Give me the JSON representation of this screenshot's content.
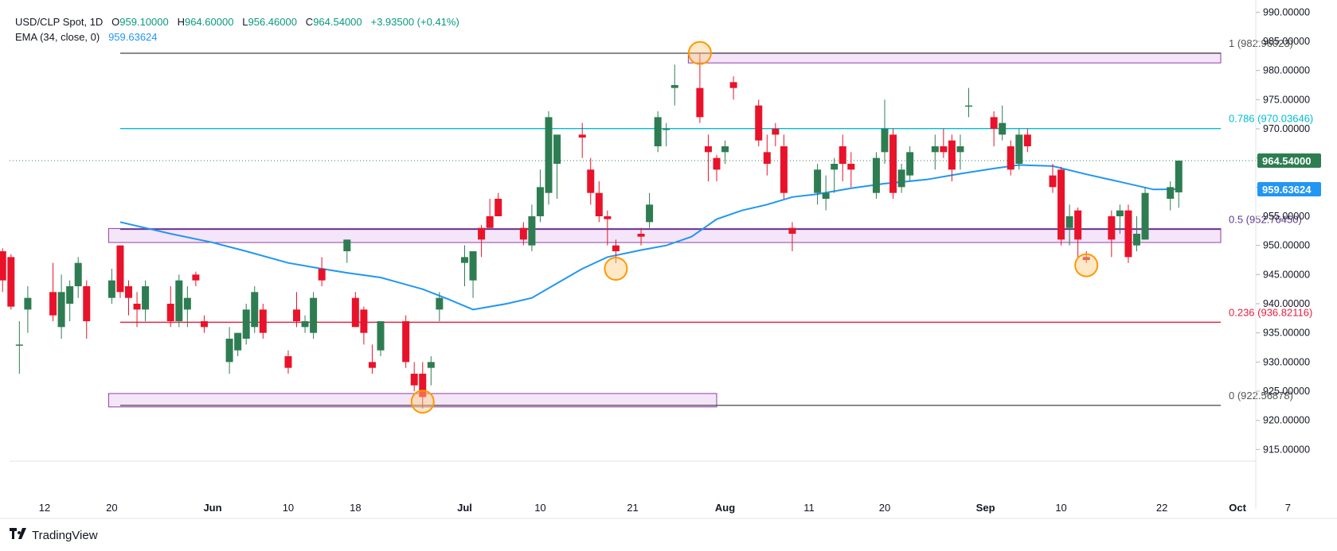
{
  "legend": {
    "symbol": "USD/CLP Spot, 1D",
    "o_label": "O",
    "o": "959.10000",
    "h_label": "H",
    "h": "964.60000",
    "l_label": "L",
    "l": "956.46000",
    "c_label": "C",
    "c": "964.54000",
    "change": "+3.93500 (+0.41%)",
    "ema_label": "EMA (34, close, 0)",
    "ema_value": "959.63624"
  },
  "brand": {
    "name": "TradingView"
  },
  "colors": {
    "up": "#2e7d52",
    "down": "#e8132a",
    "ema": "#2196f3",
    "zone_fill": "#f3e0f7",
    "zone_stroke": "#8e3fa6"
  },
  "chart_data": {
    "type": "candlestick",
    "ylim": [
      913,
      991
    ],
    "y_ticks": [
      "990.00000",
      "985.00000",
      "980.00000",
      "975.00000",
      "970.00000",
      "965.00000",
      "960.00000",
      "955.00000",
      "950.00000",
      "945.00000",
      "940.00000",
      "935.00000",
      "930.00000",
      "925.00000",
      "920.00000",
      "915.00000"
    ],
    "x_labels": [
      {
        "label": "12",
        "day": "2024-05-12"
      },
      {
        "label": "20",
        "day": "2024-05-20"
      },
      {
        "label": "Jun",
        "day": "2024-06-01"
      },
      {
        "label": "10",
        "day": "2024-06-10"
      },
      {
        "label": "18",
        "day": "2024-06-18"
      },
      {
        "label": "Jul",
        "day": "2024-07-01"
      },
      {
        "label": "10",
        "day": "2024-07-10"
      },
      {
        "label": "21",
        "day": "2024-07-21"
      },
      {
        "label": "Aug",
        "day": "2024-08-01"
      },
      {
        "label": "11",
        "day": "2024-08-11"
      },
      {
        "label": "20",
        "day": "2024-08-20"
      },
      {
        "label": "Sep",
        "day": "2024-09-01"
      },
      {
        "label": "10",
        "day": "2024-09-10"
      },
      {
        "label": "22",
        "day": "2024-09-22"
      },
      {
        "label": "Oct",
        "day": "2024-10-01"
      },
      {
        "label": "7",
        "day": "2024-10-07"
      }
    ],
    "candles": [
      {
        "d": "2024-05-07",
        "o": 949,
        "h": 949.5,
        "l": 942,
        "c": 944
      },
      {
        "d": "2024-05-08",
        "o": 948,
        "h": 948.5,
        "l": 939,
        "c": 939.5
      },
      {
        "d": "2024-05-09",
        "o": 933,
        "h": 937,
        "l": 928,
        "c": 933
      },
      {
        "d": "2024-05-10",
        "o": 939,
        "h": 943,
        "l": 935,
        "c": 941
      },
      {
        "d": "2024-05-13",
        "o": 942,
        "h": 947,
        "l": 937,
        "c": 938
      },
      {
        "d": "2024-05-14",
        "o": 936,
        "h": 945,
        "l": 934,
        "c": 942
      },
      {
        "d": "2024-05-15",
        "o": 940,
        "h": 944,
        "l": 937,
        "c": 943
      },
      {
        "d": "2024-05-16",
        "o": 943,
        "h": 948,
        "l": 941,
        "c": 947
      },
      {
        "d": "2024-05-17",
        "o": 943,
        "h": 944,
        "l": 934,
        "c": 937
      },
      {
        "d": "2024-05-20",
        "o": 941,
        "h": 946,
        "l": 940,
        "c": 944
      },
      {
        "d": "2024-05-21",
        "o": 950,
        "h": 950,
        "l": 941,
        "c": 942
      },
      {
        "d": "2024-05-22",
        "o": 943,
        "h": 944,
        "l": 938,
        "c": 941
      },
      {
        "d": "2024-05-23",
        "o": 940,
        "h": 942,
        "l": 936,
        "c": 939
      },
      {
        "d": "2024-05-24",
        "o": 939,
        "h": 944,
        "l": 937,
        "c": 943
      },
      {
        "d": "2024-05-27",
        "o": 940,
        "h": 943,
        "l": 936,
        "c": 937
      },
      {
        "d": "2024-05-28",
        "o": 937,
        "h": 945,
        "l": 936,
        "c": 944
      },
      {
        "d": "2024-05-29",
        "o": 939,
        "h": 943,
        "l": 936,
        "c": 941
      },
      {
        "d": "2024-05-30",
        "o": 945,
        "h": 945.5,
        "l": 943,
        "c": 944
      },
      {
        "d": "2024-05-31",
        "o": 937,
        "h": 938,
        "l": 935,
        "c": 936
      },
      {
        "d": "2024-06-03",
        "o": 930,
        "h": 936,
        "l": 928,
        "c": 934
      },
      {
        "d": "2024-06-04",
        "o": 932,
        "h": 935,
        "l": 931,
        "c": 935
      },
      {
        "d": "2024-06-05",
        "o": 934,
        "h": 940,
        "l": 933,
        "c": 939
      },
      {
        "d": "2024-06-06",
        "o": 936,
        "h": 943,
        "l": 935,
        "c": 942
      },
      {
        "d": "2024-06-07",
        "o": 939,
        "h": 940,
        "l": 934,
        "c": 935
      },
      {
        "d": "2024-06-10",
        "o": 931,
        "h": 932,
        "l": 928,
        "c": 929
      },
      {
        "d": "2024-06-11",
        "o": 939,
        "h": 942,
        "l": 936,
        "c": 937
      },
      {
        "d": "2024-06-12",
        "o": 936,
        "h": 938,
        "l": 935,
        "c": 937
      },
      {
        "d": "2024-06-13",
        "o": 935,
        "h": 942,
        "l": 934,
        "c": 941
      },
      {
        "d": "2024-06-14",
        "o": 946,
        "h": 948,
        "l": 943,
        "c": 944
      },
      {
        "d": "2024-06-17",
        "o": 949,
        "h": 951,
        "l": 947,
        "c": 951
      },
      {
        "d": "2024-06-18",
        "o": 941,
        "h": 942,
        "l": 936,
        "c": 936
      },
      {
        "d": "2024-06-19",
        "o": 939,
        "h": 939.5,
        "l": 933,
        "c": 935
      },
      {
        "d": "2024-06-20",
        "o": 930,
        "h": 933,
        "l": 928,
        "c": 929
      },
      {
        "d": "2024-06-21",
        "o": 932,
        "h": 937,
        "l": 931,
        "c": 937
      },
      {
        "d": "2024-06-24",
        "o": 937,
        "h": 938,
        "l": 929,
        "c": 930
      },
      {
        "d": "2024-06-25",
        "o": 928,
        "h": 930,
        "l": 925,
        "c": 926
      },
      {
        "d": "2024-06-26",
        "o": 928,
        "h": 930,
        "l": 922,
        "c": 924
      },
      {
        "d": "2024-06-27",
        "o": 929,
        "h": 931,
        "l": 926,
        "c": 930
      },
      {
        "d": "2024-06-28",
        "o": 939,
        "h": 942,
        "l": 937,
        "c": 941
      },
      {
        "d": "2024-07-01",
        "o": 947,
        "h": 950,
        "l": 943,
        "c": 948
      },
      {
        "d": "2024-07-02",
        "o": 944,
        "h": 949,
        "l": 941,
        "c": 949
      },
      {
        "d": "2024-07-03",
        "o": 953,
        "h": 953.5,
        "l": 948,
        "c": 951
      },
      {
        "d": "2024-07-04",
        "o": 955,
        "h": 958,
        "l": 953,
        "c": 953
      },
      {
        "d": "2024-07-05",
        "o": 958,
        "h": 959,
        "l": 955,
        "c": 955
      },
      {
        "d": "2024-07-08",
        "o": 953,
        "h": 954,
        "l": 950,
        "c": 951
      },
      {
        "d": "2024-07-09",
        "o": 950,
        "h": 957,
        "l": 949,
        "c": 955
      },
      {
        "d": "2024-07-10",
        "o": 955,
        "h": 963,
        "l": 954,
        "c": 960
      },
      {
        "d": "2024-07-11",
        "o": 959,
        "h": 973,
        "l": 957,
        "c": 972
      },
      {
        "d": "2024-07-12",
        "o": 964,
        "h": 969,
        "l": 958,
        "c": 969
      },
      {
        "d": "2024-07-15",
        "o": 969,
        "h": 971,
        "l": 965,
        "c": 968.5
      },
      {
        "d": "2024-07-16",
        "o": 963,
        "h": 965,
        "l": 957,
        "c": 959
      },
      {
        "d": "2024-07-17",
        "o": 959,
        "h": 961,
        "l": 954,
        "c": 955
      },
      {
        "d": "2024-07-18",
        "o": 955,
        "h": 956,
        "l": 950,
        "c": 954.5
      },
      {
        "d": "2024-07-19",
        "o": 950,
        "h": 951,
        "l": 947,
        "c": 949
      },
      {
        "d": "2024-07-22",
        "o": 952,
        "h": 953,
        "l": 950,
        "c": 951.5
      },
      {
        "d": "2024-07-23",
        "o": 954,
        "h": 959,
        "l": 953,
        "c": 957
      },
      {
        "d": "2024-07-24",
        "o": 967,
        "h": 973,
        "l": 966,
        "c": 972
      },
      {
        "d": "2024-07-25",
        "o": 970,
        "h": 971,
        "l": 967,
        "c": 970
      },
      {
        "d": "2024-07-26",
        "o": 977,
        "h": 981,
        "l": 974,
        "c": 977.5
      },
      {
        "d": "2024-07-29",
        "o": 977,
        "h": 983,
        "l": 971,
        "c": 972
      },
      {
        "d": "2024-07-30",
        "o": 967,
        "h": 969,
        "l": 961,
        "c": 966
      },
      {
        "d": "2024-07-31",
        "o": 965,
        "h": 965.5,
        "l": 961,
        "c": 963
      },
      {
        "d": "2024-08-01",
        "o": 966,
        "h": 968,
        "l": 964,
        "c": 967
      },
      {
        "d": "2024-08-02",
        "o": 978,
        "h": 979,
        "l": 975,
        "c": 977
      },
      {
        "d": "2024-08-05",
        "o": 974,
        "h": 975,
        "l": 967,
        "c": 968
      },
      {
        "d": "2024-08-06",
        "o": 966,
        "h": 969,
        "l": 962,
        "c": 964
      },
      {
        "d": "2024-08-07",
        "o": 970,
        "h": 971,
        "l": 967,
        "c": 969
      },
      {
        "d": "2024-08-08",
        "o": 967,
        "h": 969,
        "l": 958,
        "c": 959
      },
      {
        "d": "2024-08-09",
        "o": 953,
        "h": 954,
        "l": 949,
        "c": 952
      },
      {
        "d": "2024-08-12",
        "o": 959,
        "h": 964,
        "l": 957,
        "c": 963
      },
      {
        "d": "2024-08-13",
        "o": 958,
        "h": 962,
        "l": 956,
        "c": 959
      },
      {
        "d": "2024-08-14",
        "o": 963,
        "h": 965,
        "l": 959,
        "c": 964
      },
      {
        "d": "2024-08-15",
        "o": 967,
        "h": 969,
        "l": 961,
        "c": 964
      },
      {
        "d": "2024-08-16",
        "o": 964,
        "h": 966,
        "l": 960,
        "c": 963
      },
      {
        "d": "2024-08-19",
        "o": 959,
        "h": 966,
        "l": 958,
        "c": 965
      },
      {
        "d": "2024-08-20",
        "o": 966,
        "h": 975,
        "l": 964,
        "c": 970
      },
      {
        "d": "2024-08-21",
        "o": 969,
        "h": 970,
        "l": 958,
        "c": 959
      },
      {
        "d": "2024-08-22",
        "o": 960,
        "h": 964,
        "l": 959,
        "c": 963
      },
      {
        "d": "2024-08-23",
        "o": 962,
        "h": 967,
        "l": 961,
        "c": 966
      },
      {
        "d": "2024-08-26",
        "o": 966,
        "h": 969,
        "l": 963,
        "c": 967
      },
      {
        "d": "2024-08-27",
        "o": 967,
        "h": 970,
        "l": 965,
        "c": 966
      },
      {
        "d": "2024-08-28",
        "o": 968,
        "h": 969,
        "l": 961,
        "c": 963
      },
      {
        "d": "2024-08-29",
        "o": 966,
        "h": 969,
        "l": 963,
        "c": 967
      },
      {
        "d": "2024-08-30",
        "o": 974,
        "h": 977,
        "l": 972,
        "c": 974
      },
      {
        "d": "2024-09-02",
        "o": 972,
        "h": 973,
        "l": 967,
        "c": 970
      },
      {
        "d": "2024-09-03",
        "o": 969,
        "h": 974,
        "l": 968,
        "c": 971
      },
      {
        "d": "2024-09-04",
        "o": 967,
        "h": 968,
        "l": 962,
        "c": 963
      },
      {
        "d": "2024-09-05",
        "o": 964,
        "h": 970,
        "l": 963,
        "c": 969
      },
      {
        "d": "2024-09-06",
        "o": 969,
        "h": 970,
        "l": 966,
        "c": 967
      },
      {
        "d": "2024-09-09",
        "o": 962,
        "h": 964,
        "l": 959,
        "c": 960
      },
      {
        "d": "2024-09-10",
        "o": 963,
        "h": 963.5,
        "l": 950,
        "c": 951
      },
      {
        "d": "2024-09-11",
        "o": 953,
        "h": 957,
        "l": 950,
        "c": 955
      },
      {
        "d": "2024-09-12",
        "o": 956,
        "h": 956.5,
        "l": 948,
        "c": 951
      },
      {
        "d": "2024-09-13",
        "o": 948,
        "h": 949,
        "l": 947,
        "c": 947.5
      },
      {
        "d": "2024-09-16",
        "o": 955,
        "h": 956,
        "l": 948,
        "c": 951
      },
      {
        "d": "2024-09-17",
        "o": 955,
        "h": 957,
        "l": 952,
        "c": 956
      },
      {
        "d": "2024-09-18",
        "o": 956,
        "h": 957,
        "l": 947,
        "c": 948
      },
      {
        "d": "2024-09-19",
        "o": 950,
        "h": 955,
        "l": 949,
        "c": 952
      },
      {
        "d": "2024-09-20",
        "o": 951,
        "h": 960,
        "l": 951,
        "c": 959
      },
      {
        "d": "2024-09-23",
        "o": 958,
        "h": 961,
        "l": 956,
        "c": 960
      },
      {
        "d": "2024-09-24",
        "o": 959.1,
        "h": 964.6,
        "l": 956.46,
        "c": 964.54
      }
    ],
    "ema": {
      "name": "EMA (34, close, 0)",
      "points": [
        {
          "d": "2024-05-21",
          "v": 954
        },
        {
          "d": "2024-05-27",
          "v": 952
        },
        {
          "d": "2024-06-01",
          "v": 950.5
        },
        {
          "d": "2024-06-05",
          "v": 949
        },
        {
          "d": "2024-06-10",
          "v": 947
        },
        {
          "d": "2024-06-14",
          "v": 946
        },
        {
          "d": "2024-06-17",
          "v": 945.3
        },
        {
          "d": "2024-06-21",
          "v": 944.5
        },
        {
          "d": "2024-06-26",
          "v": 942.5
        },
        {
          "d": "2024-06-29",
          "v": 940.8
        },
        {
          "d": "2024-07-02",
          "v": 939
        },
        {
          "d": "2024-07-06",
          "v": 940
        },
        {
          "d": "2024-07-09",
          "v": 941
        },
        {
          "d": "2024-07-12",
          "v": 943.5
        },
        {
          "d": "2024-07-15",
          "v": 946
        },
        {
          "d": "2024-07-18",
          "v": 948
        },
        {
          "d": "2024-07-22",
          "v": 949.2
        },
        {
          "d": "2024-07-25",
          "v": 950
        },
        {
          "d": "2024-07-28",
          "v": 951.5
        },
        {
          "d": "2024-07-31",
          "v": 954.5
        },
        {
          "d": "2024-08-03",
          "v": 956
        },
        {
          "d": "2024-08-06",
          "v": 957
        },
        {
          "d": "2024-08-09",
          "v": 958.3
        },
        {
          "d": "2024-08-12",
          "v": 958.8
        },
        {
          "d": "2024-08-16",
          "v": 959.8
        },
        {
          "d": "2024-08-20",
          "v": 960.6
        },
        {
          "d": "2024-08-25",
          "v": 961.3
        },
        {
          "d": "2024-08-29",
          "v": 962.3
        },
        {
          "d": "2024-09-02",
          "v": 963.2
        },
        {
          "d": "2024-09-05",
          "v": 963.8
        },
        {
          "d": "2024-09-09",
          "v": 963.6
        },
        {
          "d": "2024-09-13",
          "v": 962.2
        },
        {
          "d": "2024-09-17",
          "v": 960.9
        },
        {
          "d": "2024-09-21",
          "v": 959.6
        },
        {
          "d": "2024-09-24",
          "v": 959.64
        }
      ]
    },
    "fib_levels": [
      {
        "label": "1 (982.96023)",
        "value": 982.96,
        "color": "#555555",
        "from": "2024-05-21"
      },
      {
        "label": "0.786 (970.03646)",
        "value": 970.04,
        "color": "#00bcd4",
        "from": "2024-05-21"
      },
      {
        "label": "0.5 (952.76450)",
        "value": 952.76,
        "color": "#5e3b8a",
        "from": "2024-05-21"
      },
      {
        "label": "0.236 (936.82116)",
        "value": 936.82,
        "color": "#e91e3c",
        "from": "2024-05-21"
      },
      {
        "label": "0 (922.56878)",
        "value": 922.57,
        "color": "#555555",
        "from": "2024-05-21"
      }
    ],
    "fib_end": "2024-09-29",
    "zones": [
      {
        "from": "2024-07-28",
        "to": "2024-09-29",
        "ymin": 981.3,
        "ymax": 983
      },
      {
        "from": "2024-05-20",
        "to": "2024-09-29",
        "ymin": 950.5,
        "ymax": 952.9
      },
      {
        "from": "2024-05-20",
        "to": "2024-07-31",
        "ymin": 922.3,
        "ymax": 924.6
      }
    ],
    "circles": [
      {
        "d": "2024-06-26",
        "v": 923.2
      },
      {
        "d": "2024-07-19",
        "v": 946
      },
      {
        "d": "2024-07-29",
        "v": 983
      },
      {
        "d": "2024-09-13",
        "v": 946.6
      }
    ],
    "last_price": {
      "value": 964.54,
      "label": "964.54000"
    },
    "ema_price": {
      "value": 959.64,
      "label": "959.63624"
    }
  }
}
